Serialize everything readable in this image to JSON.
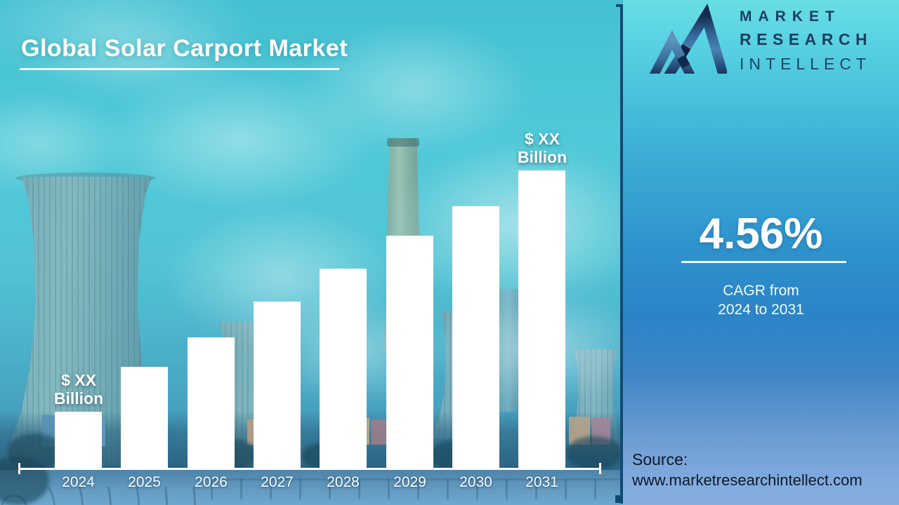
{
  "header": {
    "title": "Global Solar Carport Market"
  },
  "brand": {
    "line1": "MARKET",
    "line2": "RESEARCH",
    "line3": "INTELLECT"
  },
  "stats": {
    "cagr_value": "4.56%",
    "caption_line1": "CAGR from",
    "caption_line2": "2024 to 2031"
  },
  "source": {
    "label": "Source:",
    "url": "www.marketresearchintellect.com"
  },
  "colors": {
    "bar": "#ffffff",
    "axis_divider_navy": "#134a72",
    "logo_navy": "#1d3e60",
    "panel_top_cyan": "#68dee6",
    "panel_mid_blue": "#2b84c6",
    "panel_bottom_blue": "#85aedd",
    "source_text": "#10192b"
  },
  "chart_data": {
    "type": "bar",
    "title": "Global Solar Carport Market",
    "categories": [
      "2024",
      "2025",
      "2026",
      "2027",
      "2028",
      "2029",
      "2030",
      "2031"
    ],
    "values_relative_pct": [
      19,
      34,
      44,
      56,
      67,
      78,
      88,
      100
    ],
    "values_masked": true,
    "value_label_masked": "$ XX Billion",
    "annotated_bars": [
      0,
      7
    ],
    "annotation_line1": "$ XX",
    "annotation_line2": "Billion",
    "bar_color": "#ffffff",
    "xlabel": "",
    "ylabel": "",
    "legend": false,
    "grid": false,
    "note": "Bar heights rise steadily from 2024 to 2031; absolute values are masked as $ XX Billion; CAGR 4.56% from 2024 to 2031"
  }
}
